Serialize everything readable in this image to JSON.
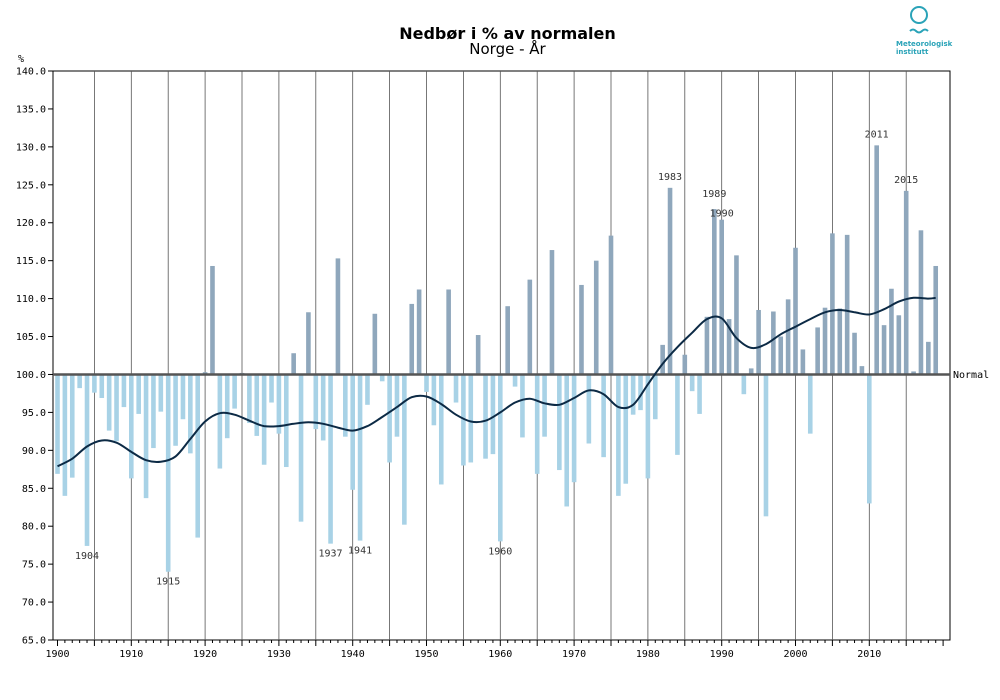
{
  "header": {
    "title": "Nedbør i % av normalen",
    "subtitle": "Norge - År",
    "logo_line1": "Meteorologisk",
    "logo_line2": "institutt"
  },
  "colors": {
    "above": "#8fa7bc",
    "below": "#a8d2e6",
    "trend": "#0c2a45",
    "normal": "#555555",
    "grid": "#000000"
  },
  "chart_data": {
    "type": "bar",
    "title": "Nedbør i % av normalen",
    "subtitle": "Norge - År",
    "ylabel": "%",
    "baseline": 100,
    "baseline_label": "Normal",
    "ylim": [
      65,
      140
    ],
    "yticks": [
      "65.0",
      "70.0",
      "75.0",
      "80.0",
      "85.0",
      "90.0",
      "95.0",
      "100.0",
      "105.0",
      "110.0",
      "115.0",
      "120.0",
      "125.0",
      "130.0",
      "135.0",
      "140.0"
    ],
    "xticks": [
      "1900",
      "1910",
      "1920",
      "1930",
      "1940",
      "1950",
      "1960",
      "1970",
      "1980",
      "1990",
      "2000",
      "2010"
    ],
    "years": [
      1900,
      1901,
      1902,
      1903,
      1904,
      1905,
      1906,
      1907,
      1908,
      1909,
      1910,
      1911,
      1912,
      1913,
      1914,
      1915,
      1916,
      1917,
      1918,
      1919,
      1920,
      1921,
      1922,
      1923,
      1924,
      1925,
      1926,
      1927,
      1928,
      1929,
      1930,
      1931,
      1932,
      1933,
      1934,
      1935,
      1936,
      1937,
      1938,
      1939,
      1940,
      1941,
      1942,
      1943,
      1944,
      1945,
      1946,
      1947,
      1948,
      1949,
      1950,
      1951,
      1952,
      1953,
      1954,
      1955,
      1956,
      1957,
      1958,
      1959,
      1960,
      1961,
      1962,
      1963,
      1964,
      1965,
      1966,
      1967,
      1968,
      1969,
      1970,
      1971,
      1972,
      1973,
      1974,
      1975,
      1976,
      1977,
      1978,
      1979,
      1980,
      1981,
      1982,
      1983,
      1984,
      1985,
      1986,
      1987,
      1988,
      1989,
      1990,
      1991,
      1992,
      1993,
      1994,
      1995,
      1996,
      1997,
      1998,
      1999,
      2000,
      2001,
      2002,
      2003,
      2004,
      2005,
      2006,
      2007,
      2008,
      2009,
      2010,
      2011,
      2012,
      2013,
      2014,
      2015,
      2016,
      2017,
      2018,
      2019
    ],
    "values": [
      86.9,
      84.0,
      86.4,
      98.2,
      77.4,
      97.6,
      96.9,
      92.6,
      91.2,
      95.7,
      86.3,
      94.8,
      83.7,
      90.3,
      95.1,
      74.0,
      90.6,
      94.1,
      89.6,
      78.5,
      100.3,
      114.3,
      87.6,
      91.6,
      95.5,
      100.2,
      93.6,
      91.9,
      88.1,
      96.3,
      92.2,
      87.8,
      102.8,
      80.6,
      108.2,
      92.8,
      91.3,
      77.7,
      115.3,
      91.8,
      84.8,
      78.1,
      96.0,
      108.0,
      99.1,
      88.4,
      91.8,
      80.2,
      109.3,
      111.2,
      97.7,
      93.3,
      85.5,
      111.2,
      96.3,
      88.0,
      88.4,
      105.2,
      88.9,
      89.5,
      78.0,
      109.0,
      98.4,
      91.7,
      112.5,
      86.9,
      91.8,
      116.4,
      87.4,
      82.6,
      85.8,
      111.8,
      90.9,
      115.0,
      89.1,
      118.3,
      84.0,
      85.6,
      94.7,
      95.3,
      86.3,
      94.1,
      103.9,
      124.6,
      89.4,
      102.6,
      97.8,
      94.8,
      107.6,
      121.8,
      120.4,
      107.3,
      115.7,
      97.4,
      100.8,
      108.5,
      81.3,
      108.3,
      105.0,
      109.9,
      116.7,
      103.3,
      92.2,
      106.2,
      108.8,
      118.6,
      108.7,
      118.4,
      105.5,
      101.1,
      83.0,
      130.2,
      106.5,
      111.3,
      107.8,
      124.2,
      100.4,
      119.0,
      104.3,
      114.3
    ],
    "trend_years": [
      1900,
      1902,
      1904,
      1906,
      1908,
      1910,
      1912,
      1914,
      1916,
      1918,
      1920,
      1922,
      1924,
      1926,
      1928,
      1930,
      1932,
      1934,
      1936,
      1938,
      1940,
      1942,
      1944,
      1946,
      1948,
      1950,
      1952,
      1954,
      1956,
      1958,
      1960,
      1962,
      1964,
      1966,
      1968,
      1970,
      1972,
      1974,
      1976,
      1978,
      1980,
      1982,
      1984,
      1986,
      1988,
      1990,
      1992,
      1994,
      1996,
      1998,
      2000,
      2002,
      2004,
      2006,
      2008,
      2010,
      2012,
      2014,
      2016,
      2018,
      2019
    ],
    "trend_values": [
      87.9,
      88.9,
      90.5,
      91.3,
      91.0,
      89.8,
      88.7,
      88.5,
      89.2,
      91.5,
      93.8,
      94.9,
      94.7,
      93.9,
      93.2,
      93.2,
      93.5,
      93.7,
      93.5,
      93.0,
      92.6,
      93.2,
      94.4,
      95.7,
      97.0,
      97.1,
      96.1,
      94.7,
      93.8,
      93.9,
      95.0,
      96.3,
      96.8,
      96.2,
      96.0,
      96.9,
      97.9,
      97.4,
      95.7,
      96.0,
      98.7,
      101.4,
      103.6,
      105.5,
      107.3,
      107.4,
      104.8,
      103.5,
      104.0,
      105.3,
      106.3,
      107.3,
      108.2,
      108.5,
      108.2,
      107.9,
      108.6,
      109.6,
      110.1,
      110.0,
      110.1
    ],
    "annotations": [
      {
        "year": 1904,
        "label": "1904"
      },
      {
        "year": 1915,
        "label": "1915"
      },
      {
        "year": 1937,
        "label": "1937"
      },
      {
        "year": 1941,
        "label": "1941"
      },
      {
        "year": 1960,
        "label": "1960"
      },
      {
        "year": 1983,
        "label": "1983"
      },
      {
        "year": 1989,
        "label": "1989"
      },
      {
        "year": 1990,
        "label": "1990"
      },
      {
        "year": 2011,
        "label": "2011"
      },
      {
        "year": 2015,
        "label": "2015"
      }
    ]
  }
}
